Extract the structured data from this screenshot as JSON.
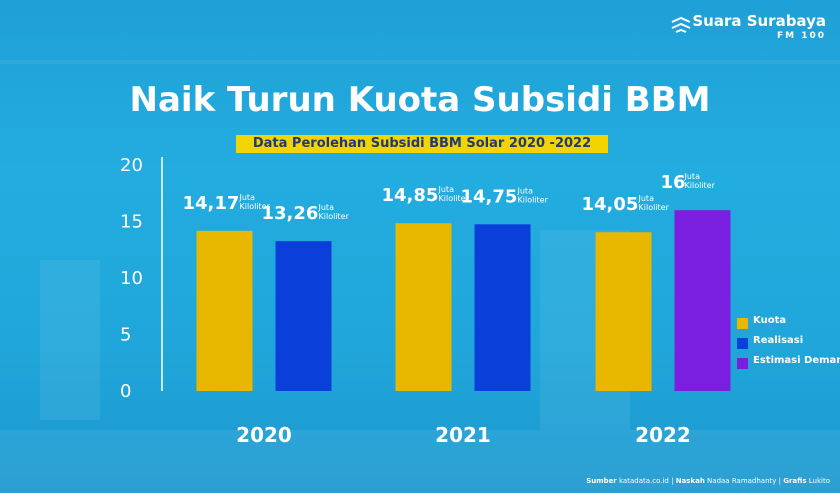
{
  "logo": {
    "name": "Suara Surabaya",
    "sub": "FM 100"
  },
  "title": "Naik Turun Kuota Subsidi BBM",
  "subtitle": "Data Perolehan Subsidi BBM Solar 2020 -2022",
  "colors": {
    "kuota": "#e8b800",
    "realisasi": "#0a3fd9",
    "estimasi": "#7a1fe0",
    "background": "#22a8dc",
    "subtitle_bg": "#f2d400"
  },
  "chart_data": {
    "type": "bar",
    "categories": [
      "2020",
      "2021",
      "2022"
    ],
    "series": [
      {
        "name": "Kuota",
        "values": [
          14.17,
          14.85,
          14.05
        ]
      },
      {
        "name": "Realisasi",
        "values": [
          13.26,
          14.75,
          null
        ]
      },
      {
        "name": "Estimasi Demand",
        "values": [
          null,
          null,
          16
        ]
      }
    ],
    "yticks": [
      "0",
      "5",
      "10",
      "15",
      "20"
    ],
    "ylim": [
      0,
      20
    ],
    "data_labels": [
      {
        "num": "14,17",
        "unit1": "Juta",
        "unit2": "Kiloliter"
      },
      {
        "num": "13,26",
        "unit1": "Juta",
        "unit2": "Kiloliter"
      },
      {
        "num": "14,85",
        "unit1": "Juta",
        "unit2": "Kiloliter"
      },
      {
        "num": "14,75",
        "unit1": "Juta",
        "unit2": "Kiloliter"
      },
      {
        "num": "14,05",
        "unit1": "Juta",
        "unit2": "Kiloliter"
      },
      {
        "num": "16",
        "unit1": "Juta",
        "unit2": "Kiloliter"
      }
    ],
    "legend_position": "right",
    "grid": false
  },
  "legend": [
    "Kuota",
    "Realisasi",
    "Estimasi Demand"
  ],
  "source": {
    "label1": "Sumber",
    "text1": "katadata.co.id",
    "label2": "Naskah",
    "text2": "Nadaa Ramadhanty",
    "label3": "Grafis",
    "text3": "Lukito"
  }
}
